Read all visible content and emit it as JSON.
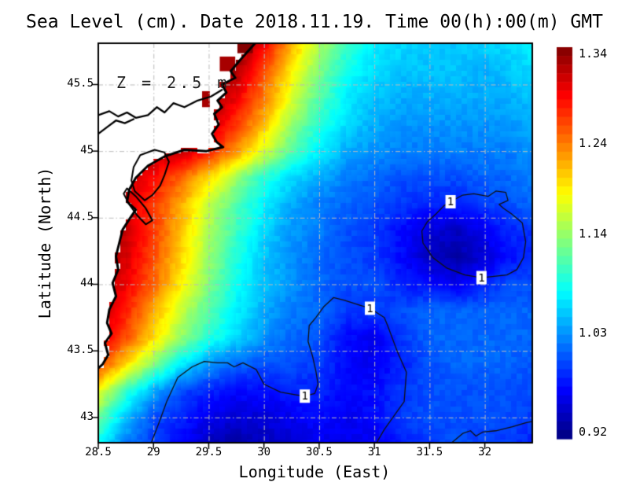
{
  "chart_data": {
    "type": "heatmap",
    "title": "Sea Level (cm). Date 2018.11.19. Time 00(h):00(m) GMT",
    "annotation": "Z = 2.5 m",
    "xlabel": "Longitude (East)",
    "ylabel": "Latitude (North)",
    "xlim": [
      28.5,
      32.43
    ],
    "ylim": [
      42.81,
      45.81
    ],
    "xticks": [
      28.5,
      29,
      29.5,
      30,
      30.5,
      31,
      31.5,
      32
    ],
    "yticks": [
      45.5,
      45,
      44.5,
      44,
      43.5,
      43
    ],
    "grid": true,
    "legend_position": "right-colorbar",
    "colorbar": {
      "vmin": 0.912,
      "vmax": 1.347,
      "steps": 45,
      "tick_labels": [
        "1.34",
        "1.24",
        "1.14",
        "1.03",
        "0.92"
      ],
      "tick_values": [
        1.34,
        1.24,
        1.14,
        1.03,
        0.92
      ]
    },
    "style": {
      "land_color": "#ffffff",
      "coast_color": "#000000",
      "grid_color": "#bcbcbc",
      "contour_color": "#111111",
      "frame_color": "#000000",
      "annotation_color": "#222222"
    },
    "lon_nodes": [
      28.5,
      28.75,
      29.0,
      29.25,
      29.5,
      29.75,
      30.0,
      30.25,
      30.5,
      30.75,
      31.0,
      31.25,
      31.5,
      31.75,
      32.0,
      32.2,
      32.43
    ],
    "lat_nodes": [
      45.81,
      45.6,
      45.4,
      45.2,
      45.0,
      44.8,
      44.6,
      44.4,
      44.2,
      44.0,
      43.8,
      43.6,
      43.4,
      43.2,
      43.0,
      42.81
    ],
    "values": [
      [
        1.33,
        1.33,
        1.33,
        1.33,
        1.34,
        1.35,
        1.3,
        1.22,
        1.15,
        1.1,
        1.07,
        1.06,
        1.05,
        1.05,
        1.06,
        1.06,
        1.07
      ],
      [
        1.33,
        1.33,
        1.33,
        1.33,
        1.33,
        1.33,
        1.26,
        1.19,
        1.13,
        1.08,
        1.06,
        1.05,
        1.05,
        1.05,
        1.04,
        1.05,
        1.06
      ],
      [
        1.32,
        1.32,
        1.32,
        1.33,
        1.34,
        1.3,
        1.24,
        1.17,
        1.11,
        1.07,
        1.05,
        1.04,
        1.04,
        1.04,
        1.04,
        1.04,
        1.05
      ],
      [
        1.32,
        1.32,
        1.32,
        1.32,
        1.32,
        1.27,
        1.21,
        1.14,
        1.09,
        1.06,
        1.04,
        1.03,
        1.03,
        1.03,
        1.03,
        1.03,
        1.04
      ],
      [
        1.32,
        1.32,
        1.32,
        1.32,
        1.28,
        1.23,
        1.17,
        1.11,
        1.07,
        1.04,
        1.03,
        1.02,
        1.02,
        1.02,
        1.02,
        1.02,
        1.03
      ],
      [
        1.32,
        1.32,
        1.29,
        1.25,
        1.2,
        1.14,
        1.09,
        1.06,
        1.04,
        1.02,
        1.01,
        1.0,
        1.0,
        1.0,
        1.01,
        1.01,
        1.02
      ],
      [
        1.32,
        1.31,
        1.27,
        1.22,
        1.16,
        1.11,
        1.07,
        1.04,
        1.02,
        1.01,
        1.0,
        0.99,
        0.98,
        0.98,
        0.99,
        1.0,
        1.01
      ],
      [
        1.33,
        1.32,
        1.27,
        1.21,
        1.15,
        1.1,
        1.06,
        1.03,
        1.02,
        1.0,
        0.99,
        0.97,
        0.95,
        0.94,
        0.96,
        0.98,
        0.99
      ],
      [
        1.33,
        1.31,
        1.26,
        1.2,
        1.14,
        1.09,
        1.05,
        1.03,
        1.01,
        1.0,
        0.99,
        0.97,
        0.94,
        0.93,
        0.95,
        0.97,
        0.98
      ],
      [
        1.33,
        1.3,
        1.25,
        1.19,
        1.13,
        1.08,
        1.05,
        1.03,
        1.01,
        1.0,
        1.0,
        0.98,
        0.97,
        0.96,
        0.98,
        1.0,
        1.0
      ],
      [
        1.32,
        1.28,
        1.22,
        1.16,
        1.11,
        1.07,
        1.04,
        1.02,
        1.01,
        0.99,
        0.99,
        1.0,
        1.01,
        1.01,
        1.01,
        1.01,
        1.01
      ],
      [
        1.31,
        1.26,
        1.2,
        1.14,
        1.09,
        1.06,
        1.03,
        1.01,
        1.0,
        0.97,
        0.96,
        0.99,
        1.01,
        1.01,
        1.01,
        1.01,
        1.01
      ],
      [
        1.27,
        1.2,
        1.13,
        1.07,
        1.03,
        1.01,
        1.0,
        1.0,
        0.99,
        0.97,
        0.96,
        0.98,
        1.0,
        1.01,
        1.01,
        1.01,
        1.0
      ],
      [
        1.18,
        1.1,
        1.04,
        1.0,
        0.98,
        0.97,
        0.97,
        0.98,
        0.98,
        0.97,
        0.97,
        0.99,
        1.0,
        1.0,
        1.0,
        1.0,
        1.0
      ],
      [
        1.12,
        1.05,
        1.0,
        0.98,
        0.96,
        0.95,
        0.95,
        0.96,
        0.97,
        0.96,
        0.97,
        0.99,
        1.0,
        1.0,
        1.0,
        1.0,
        0.99
      ],
      [
        1.08,
        1.02,
        0.99,
        0.97,
        0.94,
        0.93,
        0.94,
        0.95,
        0.96,
        0.96,
        0.96,
        0.98,
        0.99,
        1.0,
        0.99,
        0.99,
        0.98
      ]
    ],
    "land_polygon": [
      [
        29.92,
        45.81
      ],
      [
        29.78,
        45.68
      ],
      [
        29.7,
        45.6
      ],
      [
        29.74,
        45.55
      ],
      [
        29.62,
        45.5
      ],
      [
        29.66,
        45.44
      ],
      [
        29.58,
        45.38
      ],
      [
        29.62,
        45.33
      ],
      [
        29.55,
        45.28
      ],
      [
        29.59,
        45.2
      ],
      [
        29.53,
        45.13
      ],
      [
        29.57,
        45.07
      ],
      [
        29.63,
        45.03
      ],
      [
        29.48,
        45.0
      ],
      [
        29.28,
        45.01
      ],
      [
        29.1,
        44.96
      ],
      [
        28.95,
        44.89
      ],
      [
        28.84,
        44.8
      ],
      [
        28.78,
        44.71
      ],
      [
        28.76,
        44.62
      ],
      [
        28.84,
        44.56
      ],
      [
        28.79,
        44.5
      ],
      [
        28.72,
        44.41
      ],
      [
        28.69,
        44.31
      ],
      [
        28.66,
        44.21
      ],
      [
        28.68,
        44.11
      ],
      [
        28.63,
        44.01
      ],
      [
        28.66,
        43.91
      ],
      [
        28.6,
        43.81
      ],
      [
        28.58,
        43.71
      ],
      [
        28.62,
        43.63
      ],
      [
        28.56,
        43.56
      ],
      [
        28.59,
        43.47
      ],
      [
        28.54,
        43.4
      ],
      [
        28.5,
        43.37
      ],
      [
        28.5,
        45.81
      ]
    ],
    "inner_lines": [
      {
        "closed": false,
        "points": [
          [
            28.5,
            45.27
          ],
          [
            28.6,
            45.3
          ],
          [
            28.68,
            45.26
          ],
          [
            28.76,
            45.29
          ],
          [
            28.84,
            45.25
          ],
          [
            28.95,
            45.27
          ],
          [
            29.03,
            45.33
          ],
          [
            29.1,
            45.29
          ],
          [
            29.18,
            45.36
          ],
          [
            29.28,
            45.33
          ],
          [
            29.4,
            45.38
          ],
          [
            29.52,
            45.41
          ],
          [
            29.62,
            45.46
          ]
        ]
      },
      {
        "closed": false,
        "points": [
          [
            28.5,
            45.13
          ],
          [
            28.58,
            45.18
          ],
          [
            28.66,
            45.23
          ],
          [
            28.74,
            45.21
          ],
          [
            28.82,
            45.24
          ]
        ]
      },
      {
        "closed": true,
        "points": [
          [
            29.01,
            45.01
          ],
          [
            28.88,
            44.97
          ],
          [
            28.82,
            44.88
          ],
          [
            28.8,
            44.78
          ],
          [
            28.83,
            44.7
          ],
          [
            28.92,
            44.63
          ],
          [
            28.99,
            44.67
          ],
          [
            29.06,
            44.74
          ],
          [
            29.1,
            44.82
          ],
          [
            29.14,
            44.92
          ],
          [
            29.1,
            44.99
          ]
        ]
      },
      {
        "closed": true,
        "points": [
          [
            28.76,
            44.72
          ],
          [
            28.84,
            44.66
          ],
          [
            28.93,
            44.57
          ],
          [
            28.99,
            44.48
          ],
          [
            28.93,
            44.45
          ],
          [
            28.85,
            44.52
          ],
          [
            28.78,
            44.6
          ],
          [
            28.73,
            44.68
          ]
        ]
      }
    ],
    "delta_water_cells": [
      {
        "lon0": 29.6,
        "lon1": 29.74,
        "lat0": 45.6,
        "lat1": 45.71,
        "value": 1.33
      },
      {
        "lon0": 29.76,
        "lon1": 29.9,
        "lat0": 45.735,
        "lat1": 45.81,
        "value": 1.345
      },
      {
        "lon0": 29.44,
        "lon1": 29.51,
        "lat0": 45.33,
        "lat1": 45.45,
        "value": 1.33
      }
    ],
    "contours": [
      {
        "level": "1",
        "closed": true,
        "labels": [
          [
            31.69,
            44.62
          ],
          [
            31.97,
            44.05
          ]
        ],
        "points": [
          [
            31.69,
            44.62
          ],
          [
            31.8,
            44.67
          ],
          [
            31.9,
            44.68
          ],
          [
            32.03,
            44.66
          ],
          [
            32.1,
            44.7
          ],
          [
            32.19,
            44.69
          ],
          [
            32.21,
            44.63
          ],
          [
            32.13,
            44.6
          ],
          [
            32.17,
            44.57
          ],
          [
            32.24,
            44.53
          ],
          [
            32.34,
            44.46
          ],
          [
            32.37,
            44.32
          ],
          [
            32.35,
            44.2
          ],
          [
            32.29,
            44.11
          ],
          [
            32.2,
            44.07
          ],
          [
            31.97,
            44.05
          ],
          [
            31.82,
            44.07
          ],
          [
            31.66,
            44.12
          ],
          [
            31.53,
            44.2
          ],
          [
            31.44,
            44.31
          ],
          [
            31.43,
            44.4
          ],
          [
            31.48,
            44.47
          ],
          [
            31.56,
            44.53
          ],
          [
            31.63,
            44.59
          ]
        ]
      },
      {
        "level": "1",
        "closed": false,
        "labels": [
          [
            30.96,
            43.82
          ],
          [
            30.37,
            43.16
          ]
        ],
        "points": [
          [
            28.98,
            42.81
          ],
          [
            29.05,
            42.96
          ],
          [
            29.12,
            43.12
          ],
          [
            29.22,
            43.3
          ],
          [
            29.35,
            43.38
          ],
          [
            29.46,
            43.42
          ],
          [
            29.58,
            43.41
          ],
          [
            29.67,
            43.41
          ],
          [
            29.73,
            43.38
          ],
          [
            29.81,
            43.41
          ],
          [
            29.93,
            43.36
          ],
          [
            30.0,
            43.25
          ],
          [
            30.15,
            43.19
          ],
          [
            30.29,
            43.17
          ],
          [
            30.37,
            43.16
          ],
          [
            30.46,
            43.18
          ],
          [
            30.49,
            43.25
          ],
          [
            30.47,
            43.35
          ],
          [
            30.44,
            43.46
          ],
          [
            30.4,
            43.57
          ],
          [
            30.41,
            43.69
          ],
          [
            30.47,
            43.75
          ],
          [
            30.54,
            43.83
          ],
          [
            30.63,
            43.9
          ],
          [
            30.73,
            43.88
          ],
          [
            30.88,
            43.84
          ],
          [
            30.96,
            43.82
          ],
          [
            31.09,
            43.75
          ],
          [
            31.12,
            43.69
          ],
          [
            31.21,
            43.49
          ],
          [
            31.29,
            43.34
          ],
          [
            31.27,
            43.12
          ],
          [
            31.09,
            42.91
          ],
          [
            31.02,
            42.81
          ]
        ]
      },
      {
        "level": "1",
        "closed": false,
        "labels": [],
        "points": [
          [
            31.7,
            42.81
          ],
          [
            31.8,
            42.88
          ],
          [
            31.87,
            42.9
          ],
          [
            31.92,
            42.86
          ],
          [
            31.98,
            42.89
          ],
          [
            32.1,
            42.9
          ],
          [
            32.25,
            42.93
          ],
          [
            32.37,
            42.96
          ],
          [
            32.43,
            42.97
          ]
        ]
      }
    ]
  }
}
